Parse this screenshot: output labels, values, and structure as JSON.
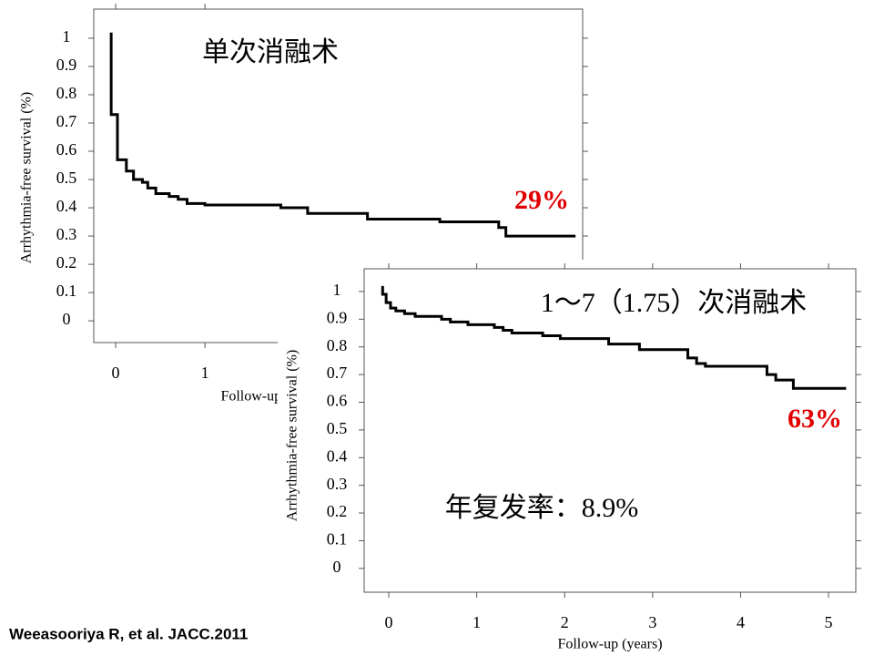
{
  "chart_data": [
    {
      "type": "line",
      "title": "单次消融术",
      "annotation": "29%",
      "annotation_color": "#e00000",
      "xlabel": "Follow-up (years)",
      "ylabel": "Arrhythmia-free survival (%)",
      "xlim": [
        -0.245,
        5.23
      ],
      "ylim": [
        -0.077,
        1.103
      ],
      "xticks": [
        0,
        1
      ],
      "yticks": [
        0,
        0.1,
        0.2,
        0.3,
        0.4,
        0.5,
        0.6,
        0.7,
        0.8,
        0.9,
        1
      ],
      "series": [
        {
          "color": "#000000",
          "x": [
            -0.05,
            -0.05,
            0.02,
            0.02,
            0.12,
            0.12,
            0.2,
            0.2,
            0.3,
            0.3,
            0.36,
            0.36,
            0.45,
            0.45,
            0.6,
            0.6,
            0.7,
            0.7,
            0.8,
            0.8,
            1.0,
            1.0,
            1.85,
            1.85,
            2.15,
            2.15,
            2.82,
            2.82,
            3.63,
            3.63,
            4.29,
            4.29,
            4.37,
            4.37,
            5.15
          ],
          "values": [
            1.02,
            0.73,
            0.73,
            0.57,
            0.57,
            0.53,
            0.53,
            0.5,
            0.5,
            0.49,
            0.49,
            0.47,
            0.47,
            0.45,
            0.45,
            0.44,
            0.44,
            0.43,
            0.43,
            0.415,
            0.415,
            0.41,
            0.41,
            0.4,
            0.4,
            0.38,
            0.38,
            0.36,
            0.36,
            0.35,
            0.35,
            0.33,
            0.33,
            0.3,
            0.3
          ]
        }
      ]
    },
    {
      "type": "line",
      "title": "1～7（1.75）次消融术",
      "annotation": "63%",
      "annotation_color": "#e00000",
      "note": "年复发率：8.9%",
      "xlabel": "Follow-up (years)",
      "ylabel": "Arrhythmia-free survival (%)",
      "xlim": [
        -0.28,
        5.31
      ],
      "ylim": [
        -0.086,
        1.082
      ],
      "xticks": [
        0,
        1,
        2,
        3,
        4,
        5
      ],
      "yticks": [
        0,
        0.1,
        0.2,
        0.3,
        0.4,
        0.5,
        0.6,
        0.7,
        0.8,
        0.9,
        1
      ],
      "series": [
        {
          "color": "#000000",
          "x": [
            -0.07,
            -0.07,
            -0.03,
            -0.03,
            0.02,
            0.02,
            0.08,
            0.08,
            0.18,
            0.18,
            0.3,
            0.3,
            0.6,
            0.6,
            0.7,
            0.7,
            0.9,
            0.9,
            1.2,
            1.2,
            1.3,
            1.3,
            1.4,
            1.4,
            1.75,
            1.75,
            1.95,
            1.95,
            2.5,
            2.5,
            2.85,
            2.85,
            3.4,
            3.4,
            3.5,
            3.5,
            3.6,
            3.6,
            4.3,
            4.3,
            4.4,
            4.4,
            4.6,
            4.6,
            5.2
          ],
          "values": [
            1.02,
            0.99,
            0.99,
            0.96,
            0.96,
            0.94,
            0.94,
            0.93,
            0.93,
            0.92,
            0.92,
            0.91,
            0.91,
            0.9,
            0.9,
            0.89,
            0.89,
            0.88,
            0.88,
            0.87,
            0.87,
            0.86,
            0.86,
            0.85,
            0.85,
            0.84,
            0.84,
            0.83,
            0.83,
            0.81,
            0.81,
            0.79,
            0.79,
            0.76,
            0.76,
            0.74,
            0.74,
            0.73,
            0.73,
            0.7,
            0.7,
            0.68,
            0.68,
            0.65,
            0.65
          ]
        }
      ]
    }
  ],
  "citation": "Weeasooriya R, et al. JACC.2011"
}
